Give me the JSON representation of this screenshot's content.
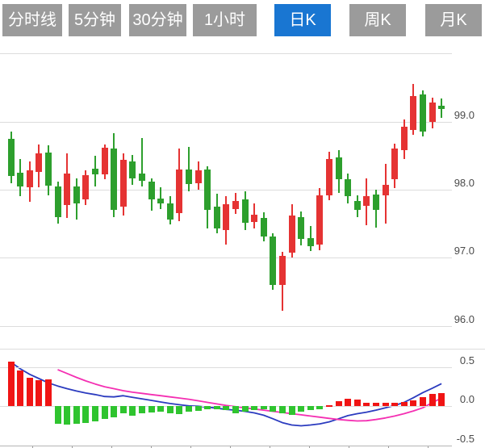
{
  "tabs": {
    "items": [
      {
        "label": "分时线",
        "active": false
      },
      {
        "label": "5分钟",
        "active": false
      },
      {
        "label": "30分钟",
        "active": false
      },
      {
        "label": "1小时",
        "active": false
      },
      {
        "label": "日K",
        "active": true
      },
      {
        "label": "周K",
        "active": false
      },
      {
        "label": "月K",
        "active": false
      }
    ],
    "active_bg": "#1976d2",
    "inactive_bg": "#9b9b9b",
    "text_color": "#ffffff"
  },
  "chart_data": {
    "type": "candlestick_with_macd",
    "title": "",
    "price_axis": {
      "tick_labels": [
        "99.0",
        "98.0",
        "97.0",
        "96.0"
      ],
      "tick_values": [
        99.0,
        98.0,
        97.0,
        96.0
      ],
      "range": [
        95.9,
        100.0
      ],
      "grid": true,
      "position": "right"
    },
    "macd_axis": {
      "tick_labels": [
        "0.5",
        "0.0",
        "-0.5"
      ],
      "tick_values": [
        0.5,
        0.0,
        -0.5
      ],
      "range": [
        -0.5,
        0.5
      ],
      "position": "right"
    },
    "colors": {
      "up": "#e53333",
      "down": "#2d9f2d",
      "hist_up": "#f01414",
      "hist_down": "#2fc42f",
      "dif_line": "#2b3bbf",
      "dea_line": "#f42fb2",
      "grid": "#dcdcdc"
    },
    "candles_ohlc": [
      [
        98.75,
        98.86,
        98.1,
        98.2
      ],
      [
        98.25,
        98.45,
        97.9,
        98.05
      ],
      [
        98.04,
        98.42,
        97.82,
        98.28
      ],
      [
        98.26,
        98.67,
        98.04,
        98.53
      ],
      [
        98.55,
        98.65,
        97.92,
        98.06
      ],
      [
        98.05,
        98.12,
        97.5,
        97.6
      ],
      [
        97.78,
        98.53,
        97.58,
        98.24
      ],
      [
        98.05,
        98.17,
        97.56,
        97.8
      ],
      [
        97.86,
        98.28,
        97.77,
        98.22
      ],
      [
        98.31,
        98.5,
        98.05,
        98.22
      ],
      [
        98.22,
        98.66,
        98.15,
        98.62
      ],
      [
        98.6,
        98.83,
        97.6,
        97.7
      ],
      [
        97.75,
        98.53,
        97.62,
        98.44
      ],
      [
        98.42,
        98.51,
        98.07,
        98.16
      ],
      [
        98.24,
        98.76,
        98.05,
        98.13
      ],
      [
        98.12,
        98.17,
        97.69,
        97.86
      ],
      [
        97.87,
        98.04,
        97.71,
        97.8
      ],
      [
        97.8,
        97.91,
        97.49,
        97.56
      ],
      [
        97.65,
        98.61,
        97.54,
        98.3
      ],
      [
        98.3,
        98.63,
        97.97,
        98.08
      ],
      [
        98.1,
        98.42,
        98.0,
        98.28
      ],
      [
        98.3,
        98.35,
        97.43,
        97.7
      ],
      [
        97.75,
        97.94,
        97.36,
        97.43
      ],
      [
        97.41,
        97.9,
        97.19,
        97.79
      ],
      [
        97.72,
        97.95,
        97.64,
        97.84
      ],
      [
        97.86,
        97.98,
        97.41,
        97.51
      ],
      [
        97.53,
        97.8,
        97.43,
        97.63
      ],
      [
        97.58,
        97.67,
        97.24,
        97.31
      ],
      [
        97.31,
        97.36,
        96.53,
        96.6
      ],
      [
        96.6,
        97.09,
        96.22,
        97.03
      ],
      [
        97.08,
        97.79,
        97.0,
        97.62
      ],
      [
        97.6,
        97.68,
        97.18,
        97.27
      ],
      [
        97.29,
        97.47,
        97.1,
        97.17
      ],
      [
        97.19,
        98.03,
        97.11,
        97.92
      ],
      [
        97.92,
        98.56,
        97.84,
        98.45
      ],
      [
        98.48,
        98.58,
        97.95,
        98.16
      ],
      [
        98.16,
        98.24,
        97.8,
        97.9
      ],
      [
        97.84,
        97.92,
        97.6,
        97.7
      ],
      [
        97.76,
        98.17,
        97.48,
        97.9
      ],
      [
        97.93,
        98.0,
        97.44,
        97.7
      ],
      [
        97.92,
        98.38,
        97.5,
        98.07
      ],
      [
        98.15,
        98.68,
        98.02,
        98.6
      ],
      [
        98.58,
        99.03,
        98.45,
        98.93
      ],
      [
        98.88,
        99.55,
        98.8,
        99.38
      ],
      [
        99.4,
        99.46,
        98.78,
        98.86
      ],
      [
        99.0,
        99.35,
        98.9,
        99.28
      ],
      [
        99.24,
        99.34,
        99.06,
        99.19
      ]
    ],
    "macd": {
      "histogram": [
        0.57,
        0.46,
        0.37,
        0.33,
        0.34,
        -0.22,
        -0.24,
        -0.23,
        -0.21,
        -0.19,
        -0.16,
        -0.14,
        -0.09,
        -0.12,
        -0.09,
        -0.075,
        -0.07,
        -0.09,
        -0.1,
        -0.07,
        -0.055,
        -0.04,
        -0.038,
        -0.05,
        -0.09,
        -0.07,
        -0.05,
        -0.04,
        -0.065,
        -0.095,
        -0.115,
        -0.07,
        -0.05,
        -0.038,
        0.018,
        0.07,
        0.1,
        0.085,
        0.05,
        0.04,
        0.05,
        0.043,
        0.052,
        0.08,
        0.12,
        0.155,
        0.17
      ],
      "dif": [
        0.565,
        0.48,
        0.41,
        0.355,
        0.3,
        0.26,
        0.225,
        0.195,
        0.17,
        0.15,
        0.125,
        0.12,
        0.135,
        0.115,
        0.095,
        0.075,
        0.055,
        0.035,
        0.02,
        0.005,
        0.0,
        -0.01,
        -0.025,
        -0.04,
        -0.05,
        -0.065,
        -0.085,
        -0.115,
        -0.16,
        -0.21,
        -0.24,
        -0.25,
        -0.24,
        -0.225,
        -0.2,
        -0.16,
        -0.12,
        -0.095,
        -0.075,
        -0.05,
        -0.02,
        0.01,
        0.05,
        0.11,
        0.175,
        0.23,
        0.29
      ],
      "dea": [
        null,
        null,
        null,
        null,
        null,
        0.47,
        0.42,
        0.37,
        0.325,
        0.285,
        0.25,
        0.225,
        0.2,
        0.18,
        0.165,
        0.15,
        0.135,
        0.12,
        0.105,
        0.09,
        0.07,
        0.05,
        0.03,
        0.01,
        -0.005,
        -0.02,
        -0.035,
        -0.05,
        -0.065,
        -0.08,
        -0.095,
        -0.11,
        -0.125,
        -0.14,
        -0.155,
        -0.17,
        -0.18,
        -0.188,
        -0.185,
        -0.17,
        -0.15,
        -0.125,
        -0.095,
        -0.06,
        -0.02,
        0.045,
        0.105
      ]
    }
  }
}
